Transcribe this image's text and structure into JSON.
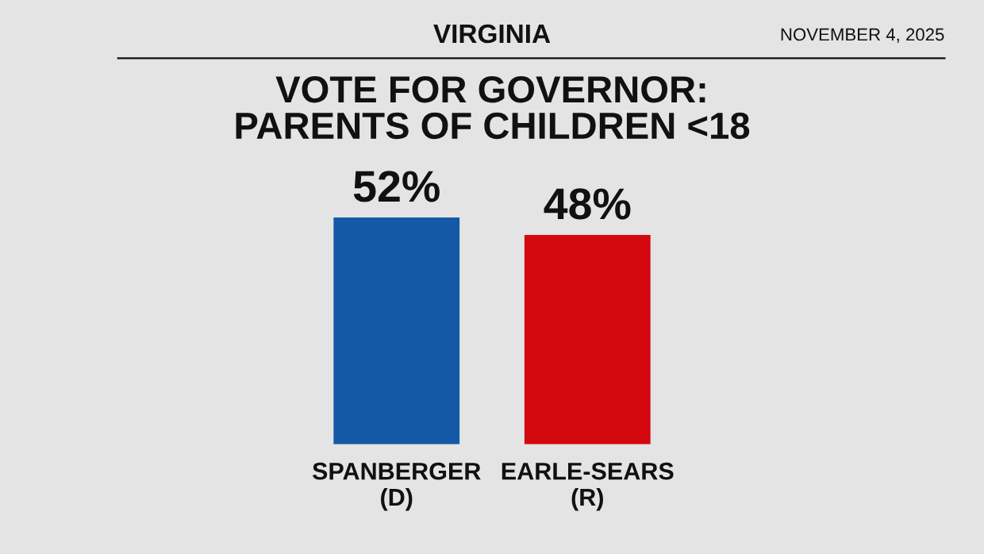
{
  "chart_data": {
    "type": "bar",
    "title": "VOTE FOR GOVERNOR:\nPARENTS OF CHILDREN <18",
    "categories": [
      "SPANBERGER\n(D)",
      "EARLE-SEARS\n(R)"
    ],
    "values": [
      52,
      48
    ],
    "colors": [
      "#1559a6",
      "#d3090f"
    ],
    "value_labels": [
      "52%",
      "48%"
    ],
    "annotations": [
      "VIRGINIA",
      "NOVEMBER 4, 2025"
    ]
  }
}
